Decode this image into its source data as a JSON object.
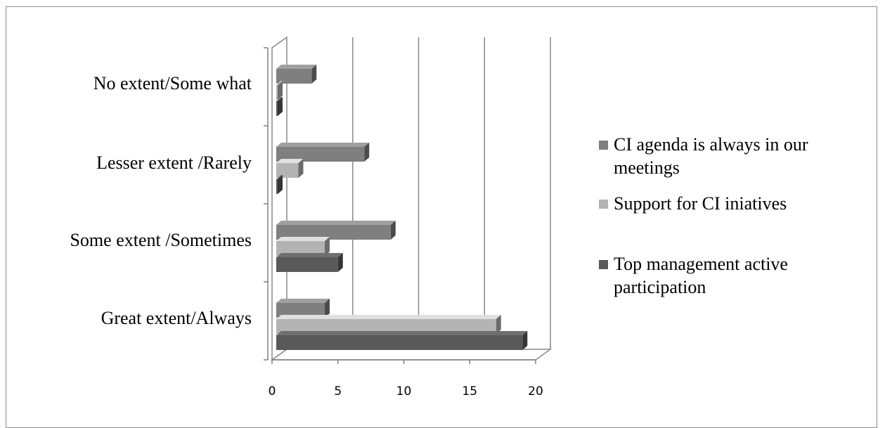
{
  "chart_data": {
    "type": "bar",
    "orientation": "horizontal",
    "style": "3d-clustered",
    "categories": [
      "No extent/Some what",
      "Lesser extent /Rarely",
      "Some extent /Sometimes",
      "Great extent/Always"
    ],
    "series": [
      {
        "name": "CI agenda is always in  our meetings",
        "values": [
          3,
          7,
          9,
          4
        ],
        "color": "#7f7f7f"
      },
      {
        "name": "Support for CI iniatives",
        "values": [
          0,
          2,
          4,
          17
        ],
        "color": "#b3b3b3"
      },
      {
        "name": "Top  management active participation",
        "values": [
          0,
          0,
          5,
          19
        ],
        "color": "#595959"
      }
    ],
    "xlim": [
      0,
      20
    ],
    "xticks": [
      0,
      5,
      10,
      15,
      20
    ],
    "xtick_labels": [
      "0",
      "5",
      "10",
      "15",
      "20"
    ],
    "grid": true,
    "legend_position": "right",
    "legend_lines": [
      [
        "CI agenda is always in  our",
        "meetings"
      ],
      [
        "Support for CI iniatives"
      ],
      [
        "Top  management active",
        "participation"
      ]
    ]
  }
}
